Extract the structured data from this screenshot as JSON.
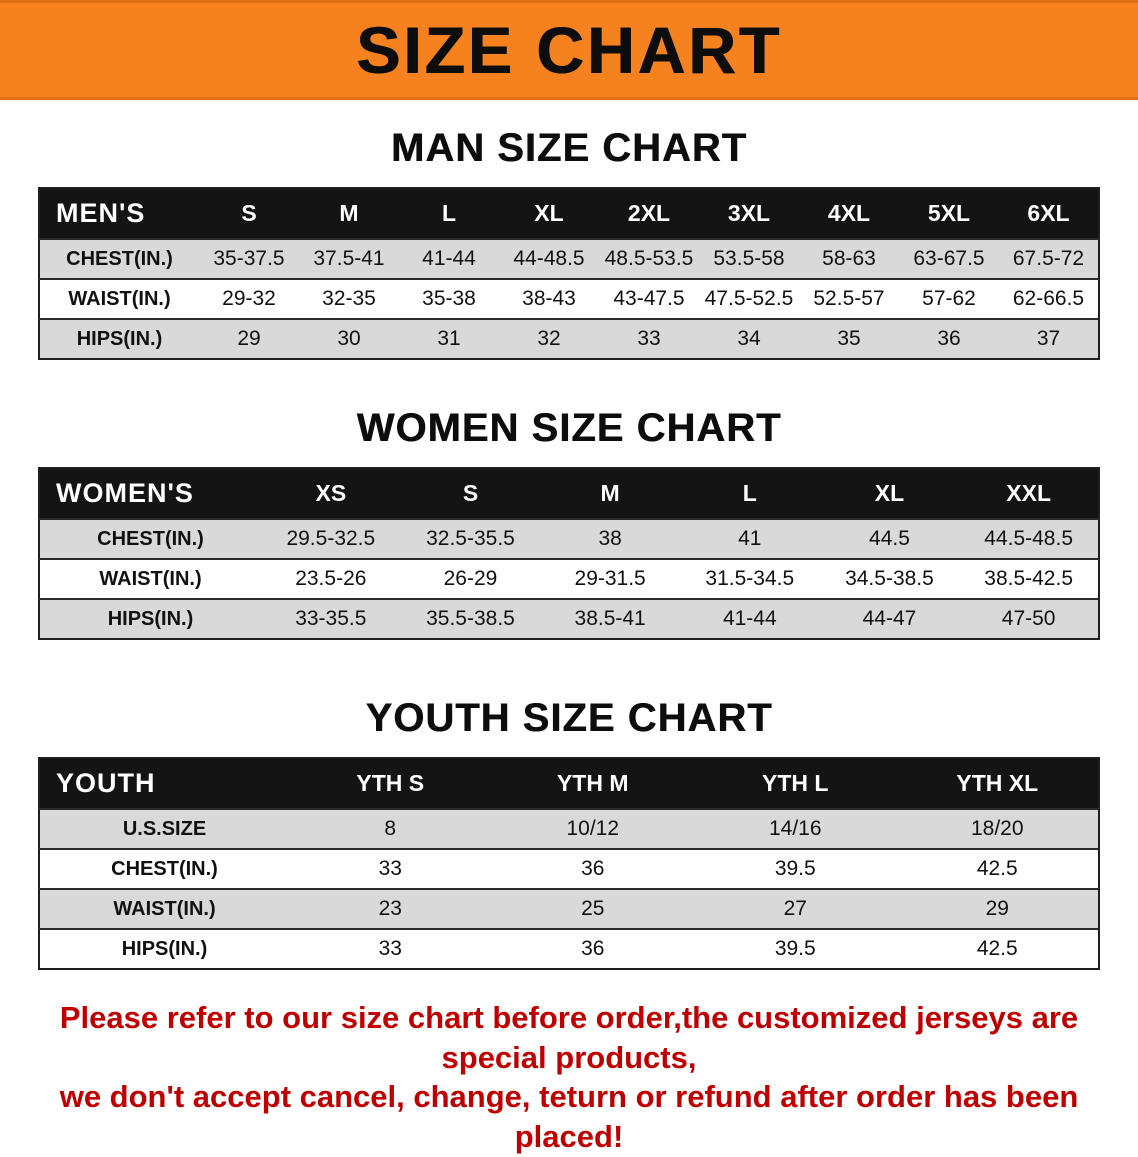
{
  "banner": {
    "title": "SIZE CHART"
  },
  "colors": {
    "banner_bg": "#f5821f",
    "header_bg": "#141414",
    "row_alt": "#d9d9d9",
    "footer_red": "#c00000"
  },
  "sections": [
    {
      "heading": "MAN SIZE CHART",
      "table": {
        "label_header": "MEN'S",
        "columns": [
          "S",
          "M",
          "L",
          "XL",
          "2XL",
          "3XL",
          "4XL",
          "5XL",
          "6XL"
        ],
        "rows": [
          {
            "label": "CHEST(IN.)",
            "values": [
              "35-37.5",
              "37.5-41",
              "41-44",
              "44-48.5",
              "48.5-53.5",
              "53.5-58",
              "58-63",
              "63-67.5",
              "67.5-72"
            ]
          },
          {
            "label": "WAIST(IN.)",
            "values": [
              "29-32",
              "32-35",
              "35-38",
              "38-43",
              "43-47.5",
              "47.5-52.5",
              "52.5-57",
              "57-62",
              "62-66.5"
            ]
          },
          {
            "label": "HIPS(IN.)",
            "values": [
              "29",
              "30",
              "31",
              "32",
              "33",
              "34",
              "35",
              "36",
              "37"
            ]
          }
        ]
      }
    },
    {
      "heading": "WOMEN SIZE CHART",
      "table": {
        "label_header": "WOMEN'S",
        "columns": [
          "XS",
          "S",
          "M",
          "L",
          "XL",
          "XXL"
        ],
        "rows": [
          {
            "label": "CHEST(IN.)",
            "values": [
              "29.5-32.5",
              "32.5-35.5",
              "38",
              "41",
              "44.5",
              "44.5-48.5"
            ]
          },
          {
            "label": "WAIST(IN.)",
            "values": [
              "23.5-26",
              "26-29",
              "29-31.5",
              "31.5-34.5",
              "34.5-38.5",
              "38.5-42.5"
            ]
          },
          {
            "label": "HIPS(IN.)",
            "values": [
              "33-35.5",
              "35.5-38.5",
              "38.5-41",
              "41-44",
              "44-47",
              "47-50"
            ]
          }
        ]
      }
    },
    {
      "heading": "YOUTH SIZE CHART",
      "table": {
        "label_header": "YOUTH",
        "columns": [
          "YTH S",
          "YTH M",
          "YTH L",
          "YTH XL"
        ],
        "rows": [
          {
            "label": "U.S.SIZE",
            "values": [
              "8",
              "10/12",
              "14/16",
              "18/20"
            ]
          },
          {
            "label": "CHEST(IN.)",
            "values": [
              "33",
              "36",
              "39.5",
              "42.5"
            ]
          },
          {
            "label": "WAIST(IN.)",
            "values": [
              "23",
              "25",
              "27",
              "29"
            ]
          },
          {
            "label": "HIPS(IN.)",
            "values": [
              "33",
              "36",
              "39.5",
              "42.5"
            ]
          }
        ]
      }
    }
  ],
  "footer": {
    "line1": "Please refer to our size chart before order,the customized jerseys are special products,",
    "line2": "we don't accept cancel, change, teturn or refund after order has been placed!"
  }
}
